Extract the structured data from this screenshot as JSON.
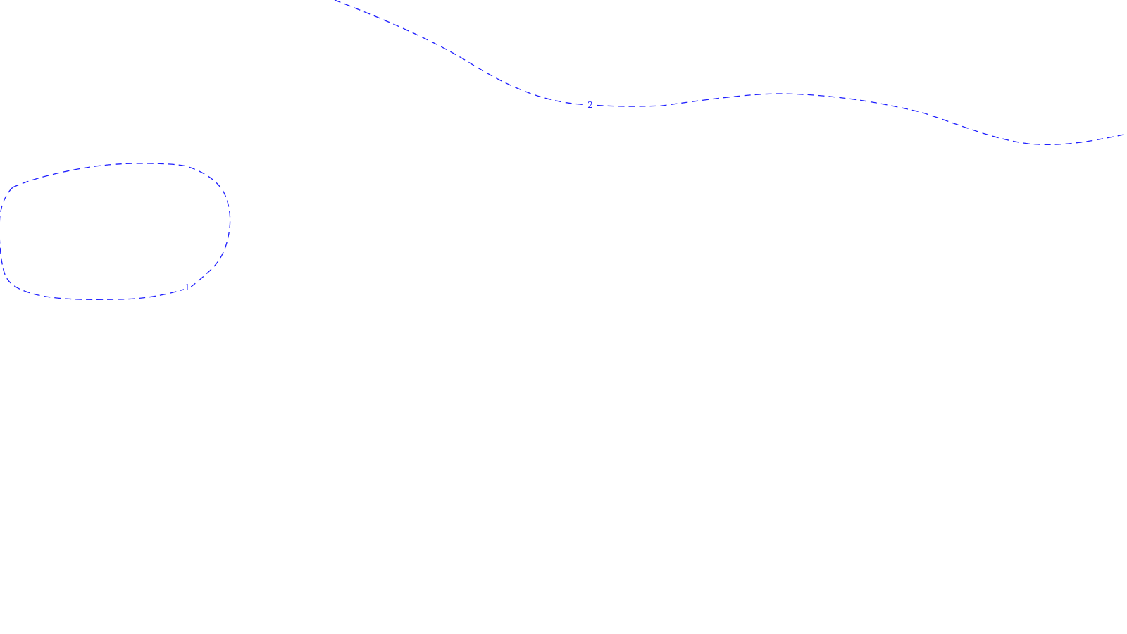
{
  "map": {
    "background": "#ffffff",
    "line_color": "#1f1fff",
    "line_style": "dashed",
    "contours": [
      {
        "id": "contour-1",
        "label": "1",
        "shape": "closed loop"
      },
      {
        "id": "contour-2",
        "label": "2",
        "shape": "open curve"
      }
    ]
  }
}
